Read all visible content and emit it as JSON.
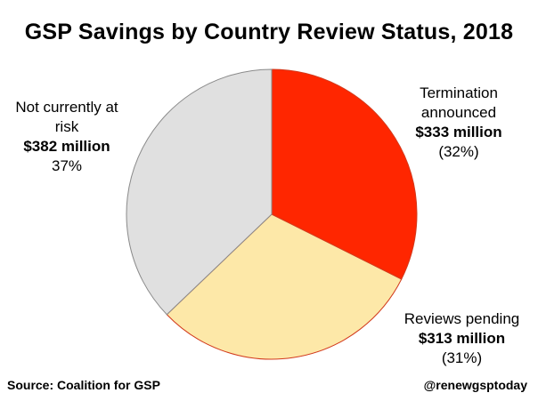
{
  "chart_data": {
    "type": "pie",
    "title": "GSP Savings by Country Review Status, 2018",
    "slices": [
      {
        "label_lines": [
          "Termination",
          "announced"
        ],
        "amount": "$333 million",
        "percent_text": "(32%)",
        "value": 333,
        "color": "#ff2600"
      },
      {
        "label_lines": [
          "Reviews pending"
        ],
        "amount": "$313 million",
        "percent_text": "(31%)",
        "value": 313,
        "color": "#fde8a8"
      },
      {
        "label_lines": [
          "Not currently at",
          "risk"
        ],
        "amount": "$382 million",
        "percent_text": "37%",
        "value": 382,
        "color": "#e0e0e0"
      }
    ]
  },
  "footer": {
    "source": "Source: Coalition for GSP",
    "handle": "@renewgsptoday"
  }
}
